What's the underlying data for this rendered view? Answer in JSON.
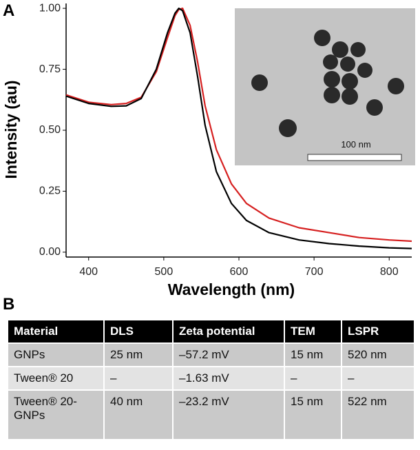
{
  "panel_labels": [
    "A",
    "B"
  ],
  "chart_data": {
    "type": "line",
    "xlabel": "Wavelength (nm)",
    "ylabel": "Intensity (au)",
    "x": [
      370,
      400,
      430,
      450,
      470,
      490,
      505,
      515,
      520,
      525,
      535,
      545,
      555,
      570,
      590,
      610,
      640,
      680,
      720,
      760,
      800,
      830
    ],
    "series": [
      {
        "color": "#000000",
        "values": [
          0.64,
          0.61,
          0.598,
          0.6,
          0.63,
          0.75,
          0.9,
          0.98,
          1.0,
          0.99,
          0.9,
          0.72,
          0.52,
          0.33,
          0.2,
          0.13,
          0.08,
          0.05,
          0.035,
          0.025,
          0.018,
          0.015
        ]
      },
      {
        "color": "#d62020",
        "values": [
          0.645,
          0.615,
          0.605,
          0.61,
          0.635,
          0.74,
          0.88,
          0.97,
          0.995,
          1.0,
          0.93,
          0.78,
          0.6,
          0.42,
          0.28,
          0.2,
          0.14,
          0.1,
          0.08,
          0.06,
          0.05,
          0.045
        ]
      }
    ],
    "xlim": [
      370,
      830
    ],
    "ylim": [
      -0.02,
      1.02
    ],
    "xticks": [
      400,
      500,
      600,
      700,
      800
    ],
    "yticks": [
      {
        "value": 0,
        "label": "0.00"
      },
      {
        "value": 0.25,
        "label": "0.25"
      },
      {
        "value": 0.5,
        "label": "0.50"
      },
      {
        "value": 0.75,
        "label": "0.75"
      },
      {
        "value": 1,
        "label": "1.00"
      }
    ]
  },
  "inset": {
    "scale_label": "100 nm"
  },
  "table": {
    "header": [
      "Material",
      "DLS",
      "Zeta potential",
      "TEM",
      "LSPR"
    ],
    "rows": [
      [
        "GNPs",
        "25 nm",
        "–57.2 mV",
        "15 nm",
        "520 nm"
      ],
      [
        "Tween® 20",
        "–",
        "–1.63  mV",
        "–",
        "–"
      ],
      [
        "Tween® 20-GNPs",
        "40 nm",
        "–23.2 mV",
        "15 nm",
        "522 nm"
      ]
    ]
  }
}
